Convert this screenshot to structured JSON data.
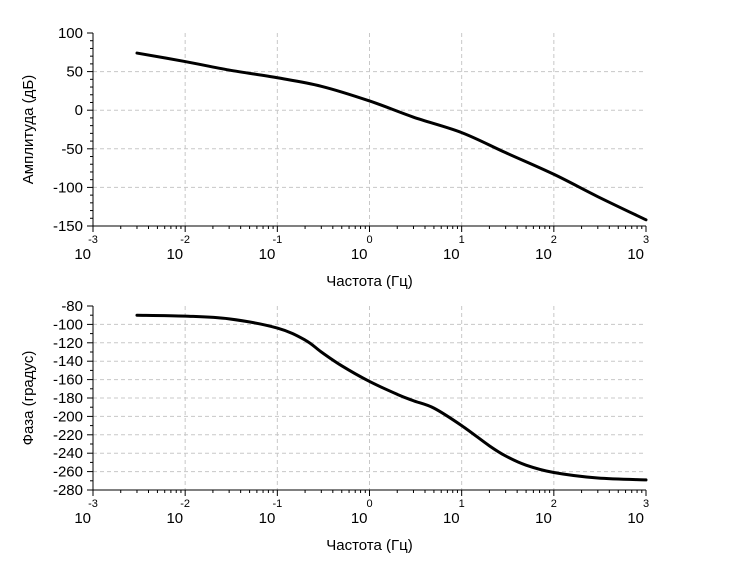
{
  "chart_data": [
    {
      "type": "line",
      "xlabel": "Частота (Гц)",
      "ylabel": "Амплитуда (дБ)",
      "xscale": "log",
      "xlim": [
        0.001,
        1000
      ],
      "ylim": [
        -150,
        100
      ],
      "xticks": [
        {
          "base": "10",
          "exp": "-3"
        },
        {
          "base": "10",
          "exp": "-2"
        },
        {
          "base": "10",
          "exp": "-1"
        },
        {
          "base": "10",
          "exp": "0"
        },
        {
          "base": "10",
          "exp": "1"
        },
        {
          "base": "10",
          "exp": "2"
        },
        {
          "base": "10",
          "exp": "3"
        }
      ],
      "yticks": [
        "100",
        "50",
        "0",
        "-50",
        "-100",
        "-150"
      ],
      "ytick_values": [
        100,
        50,
        0,
        -50,
        -100,
        -150
      ],
      "grid": true,
      "series": [
        {
          "x": [
            0.003,
            0.01,
            0.03,
            0.1,
            0.3,
            1,
            3,
            10,
            30,
            100,
            300,
            1000
          ],
          "y": [
            74,
            63,
            52,
            42,
            31,
            12,
            -9,
            -29,
            -55,
            -83,
            -112,
            -142
          ]
        }
      ]
    },
    {
      "type": "line",
      "xlabel": "Частота (Гц)",
      "ylabel": "Фаза (градус)",
      "xscale": "log",
      "xlim": [
        0.001,
        1000
      ],
      "ylim": [
        -280,
        -80
      ],
      "xticks": [
        {
          "base": "10",
          "exp": "-3"
        },
        {
          "base": "10",
          "exp": "-2"
        },
        {
          "base": "10",
          "exp": "-1"
        },
        {
          "base": "10",
          "exp": "0"
        },
        {
          "base": "10",
          "exp": "1"
        },
        {
          "base": "10",
          "exp": "2"
        },
        {
          "base": "10",
          "exp": "3"
        }
      ],
      "yticks": [
        "-80",
        "-100",
        "-120",
        "-140",
        "-160",
        "-180",
        "-200",
        "-220",
        "-240",
        "-260",
        "-280"
      ],
      "ytick_values": [
        -80,
        -100,
        -120,
        -140,
        -160,
        -180,
        -200,
        -220,
        -240,
        -260,
        -280
      ],
      "grid": true,
      "series": [
        {
          "x": [
            0.003,
            0.01,
            0.03,
            0.1,
            0.2,
            0.3,
            0.5,
            1,
            2,
            3,
            5,
            10,
            20,
            30,
            50,
            100,
            300,
            1000
          ],
          "y": [
            -90,
            -91,
            -94,
            -104,
            -117,
            -130,
            -145,
            -162,
            -176,
            -183,
            -191,
            -210,
            -232,
            -243,
            -253,
            -261,
            -267,
            -269
          ]
        }
      ]
    }
  ]
}
